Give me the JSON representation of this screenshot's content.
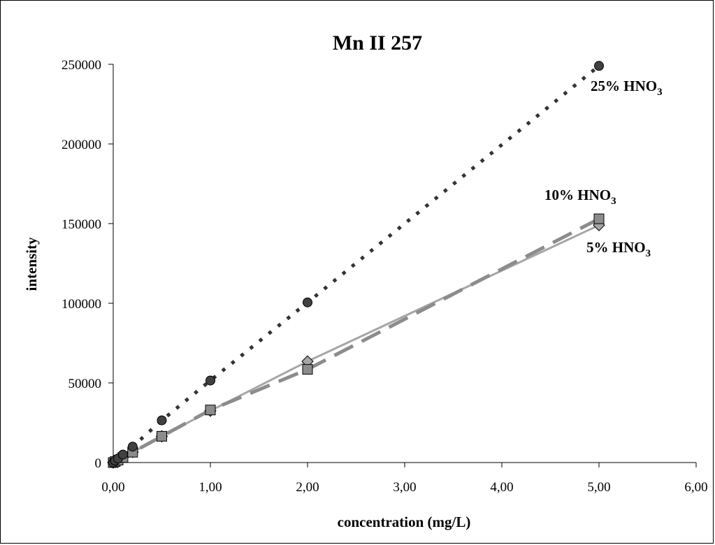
{
  "chart_data": {
    "type": "scatter",
    "title": "Mn II 257",
    "xlabel": "concentration (mg/L)",
    "ylabel": "intensity",
    "xlim": [
      0,
      6
    ],
    "ylim": [
      0,
      250000
    ],
    "x_ticks": [
      "0,00",
      "1,00",
      "2,00",
      "3,00",
      "4,00",
      "5,00",
      "6,00"
    ],
    "y_ticks": [
      "0",
      "50000",
      "100000",
      "150000",
      "200000",
      "250000"
    ],
    "grid": false,
    "legend": "none",
    "series": [
      {
        "label_main": "25% HNO",
        "label_sub": "3",
        "marker": "circle",
        "line": "dotted",
        "marker_color": "#404040",
        "line_color": "#333333",
        "x": [
          0.0,
          0.02,
          0.05,
          0.1,
          0.2,
          0.5,
          1.0,
          2.0,
          5.0
        ],
        "y": [
          0,
          1200,
          2500,
          5000,
          10000,
          26500,
          51500,
          100500,
          249000
        ]
      },
      {
        "label_main": "10% HNO",
        "label_sub": "3",
        "marker": "square",
        "line": "dashed",
        "marker_color": "#8c8c8c",
        "line_color": "#8c8c8c",
        "x": [
          0.0,
          0.02,
          0.05,
          0.1,
          0.2,
          0.5,
          1.0,
          2.0,
          5.0
        ],
        "y": [
          0,
          600,
          1500,
          3200,
          6500,
          16500,
          33000,
          58500,
          153000
        ]
      },
      {
        "label_main": "5% HNO",
        "label_sub": "3",
        "marker": "diamond",
        "line": "solid",
        "marker_color": "#a6a6a6",
        "line_color": "#a6a6a6",
        "x": [
          0.0,
          0.02,
          0.05,
          0.1,
          0.2,
          0.5,
          1.0,
          2.0,
          5.0
        ],
        "y": [
          0,
          700,
          1700,
          3300,
          6600,
          16500,
          32500,
          63500,
          149000
        ]
      }
    ]
  }
}
